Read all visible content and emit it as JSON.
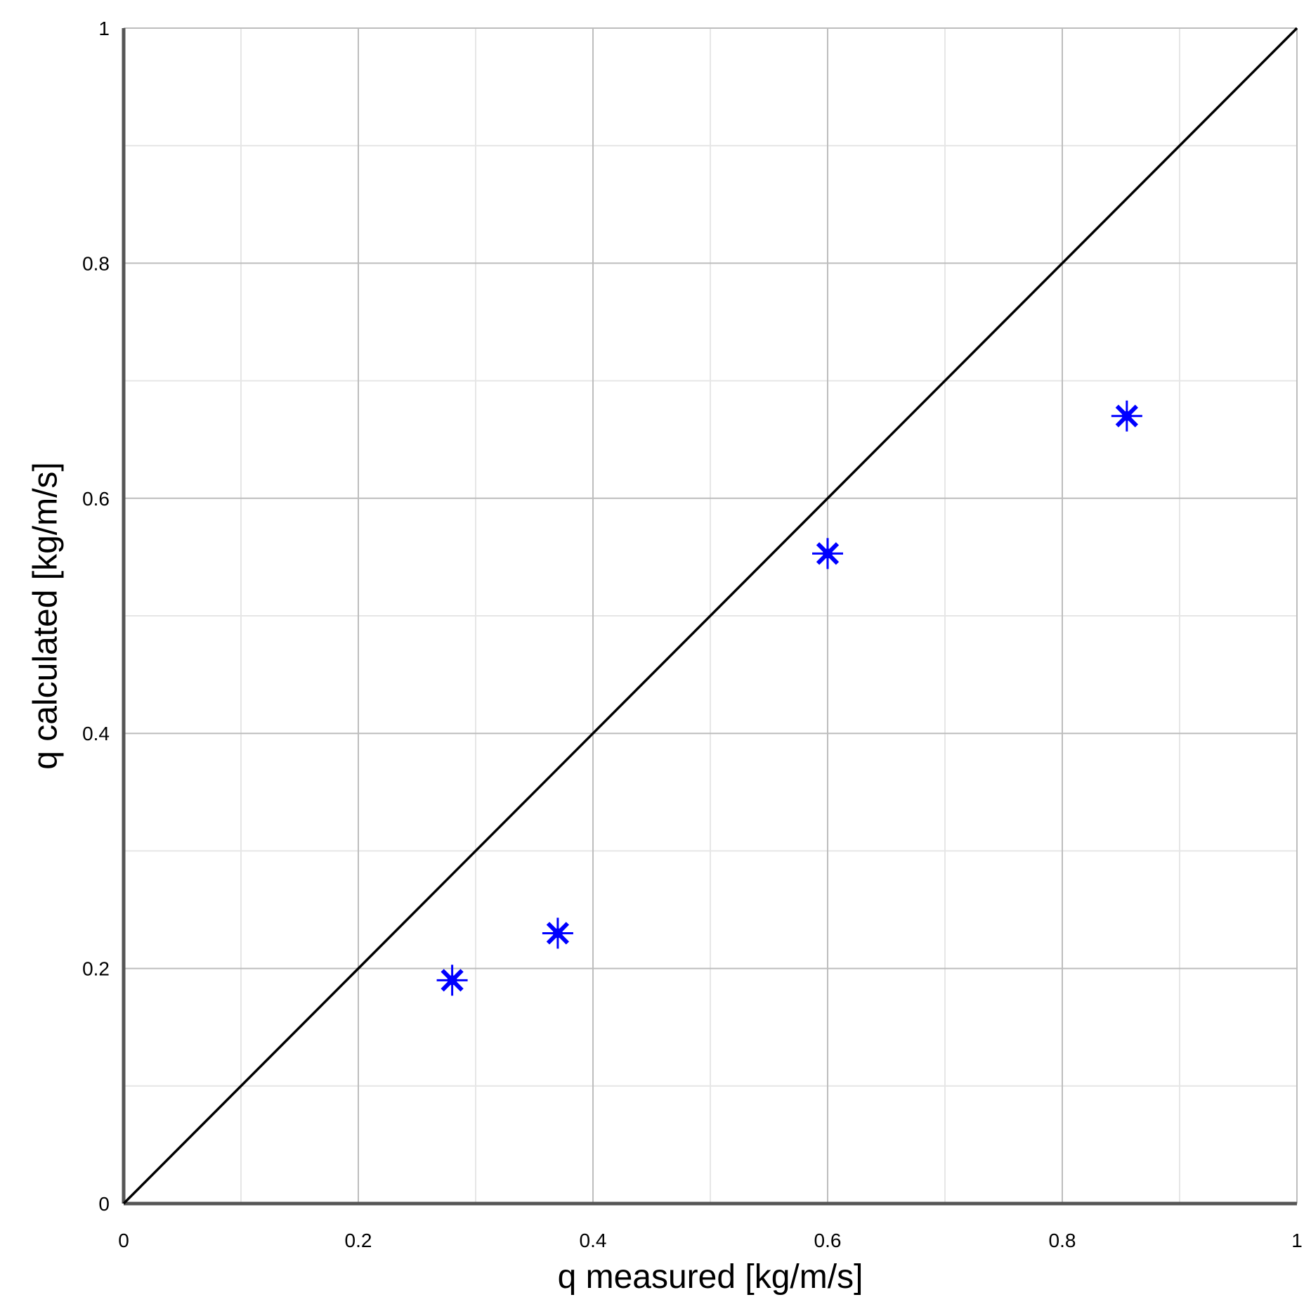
{
  "chart_data": {
    "type": "scatter",
    "title": "",
    "xlabel": "q measured [kg/m/s]",
    "ylabel": "q calculated [kg/m/s]",
    "xlim": [
      0,
      1
    ],
    "ylim": [
      0,
      1
    ],
    "x_ticks": [
      "0",
      "0.2",
      "0.4",
      "0.6",
      "0.8",
      "1"
    ],
    "y_ticks": [
      "0",
      "0.2",
      "0.4",
      "0.6",
      "0.8",
      "1"
    ],
    "x_tick_values": [
      0,
      0.2,
      0.4,
      0.6,
      0.8,
      1
    ],
    "y_tick_values": [
      0,
      0.2,
      0.4,
      0.6,
      0.8,
      1
    ],
    "grid": true,
    "reference_line": {
      "x": [
        0,
        1
      ],
      "y": [
        0,
        1
      ],
      "color": "#000000"
    },
    "series": [
      {
        "marker": "asterisk",
        "color": "#0000ff",
        "points": [
          {
            "x": 0.28,
            "y": 0.19
          },
          {
            "x": 0.37,
            "y": 0.23
          },
          {
            "x": 0.6,
            "y": 0.553
          },
          {
            "x": 0.855,
            "y": 0.67
          }
        ]
      }
    ]
  }
}
